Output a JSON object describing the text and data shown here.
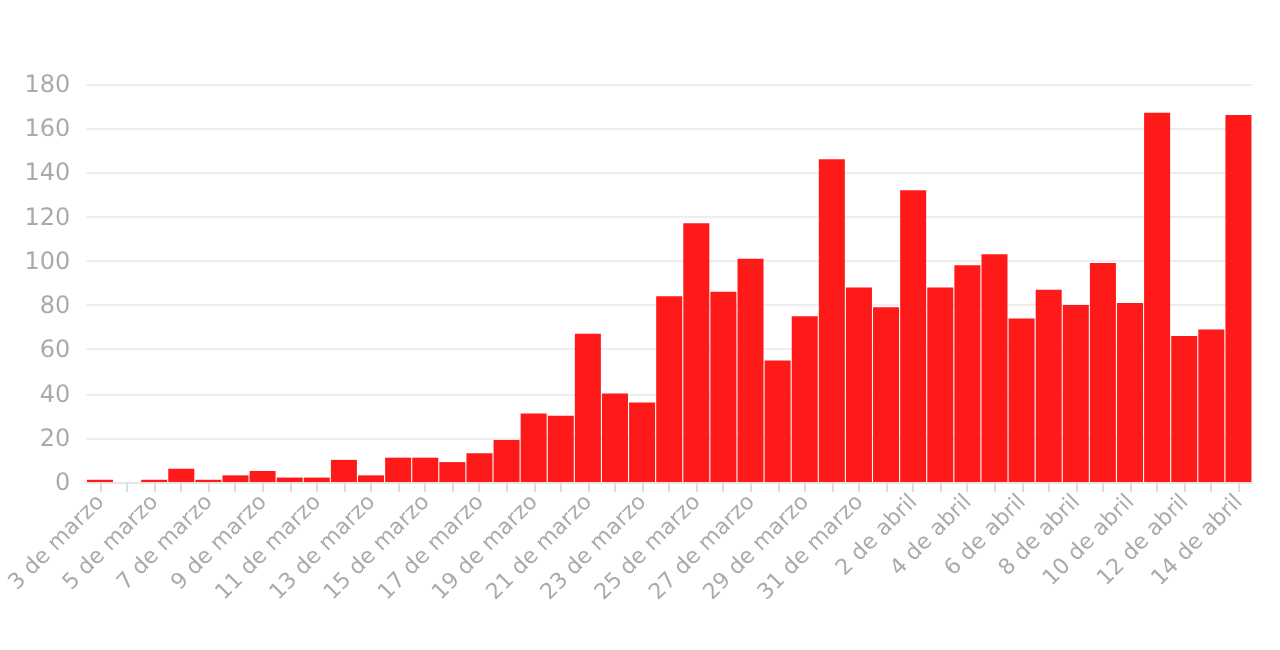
{
  "chart_data": {
    "type": "bar",
    "categories": [
      "3 de marzo",
      null,
      "5 de marzo",
      null,
      "7 de marzo",
      null,
      "9 de marzo",
      null,
      "11 de marzo",
      null,
      "13 de marzo",
      null,
      "15 de marzo",
      null,
      "17 de marzo",
      null,
      "19 de marzo",
      null,
      "21 de marzo",
      null,
      "23 de marzo",
      null,
      "25 de marzo",
      null,
      "27 de marzo",
      null,
      "29 de marzo",
      null,
      "31 de marzo",
      null,
      "2 de abril",
      null,
      "4 de abril",
      null,
      "6 de abril",
      null,
      "8 de abril",
      null,
      "10 de abril",
      null,
      "12 de abril",
      null,
      "14 de abril"
    ],
    "values": [
      1,
      0,
      1,
      6,
      1,
      3,
      5,
      2,
      2,
      10,
      3,
      11,
      11,
      9,
      13,
      19,
      31,
      30,
      67,
      40,
      36,
      84,
      117,
      86,
      101,
      55,
      75,
      146,
      88,
      79,
      132,
      88,
      98,
      103,
      74,
      87,
      80,
      99,
      81,
      167,
      66,
      69,
      166
    ],
    "color": "#ff1a1a",
    "ylim": [
      0,
      180
    ],
    "yticks": [
      0,
      20,
      40,
      60,
      80,
      100,
      120,
      140,
      160,
      180
    ],
    "grid": "y"
  }
}
